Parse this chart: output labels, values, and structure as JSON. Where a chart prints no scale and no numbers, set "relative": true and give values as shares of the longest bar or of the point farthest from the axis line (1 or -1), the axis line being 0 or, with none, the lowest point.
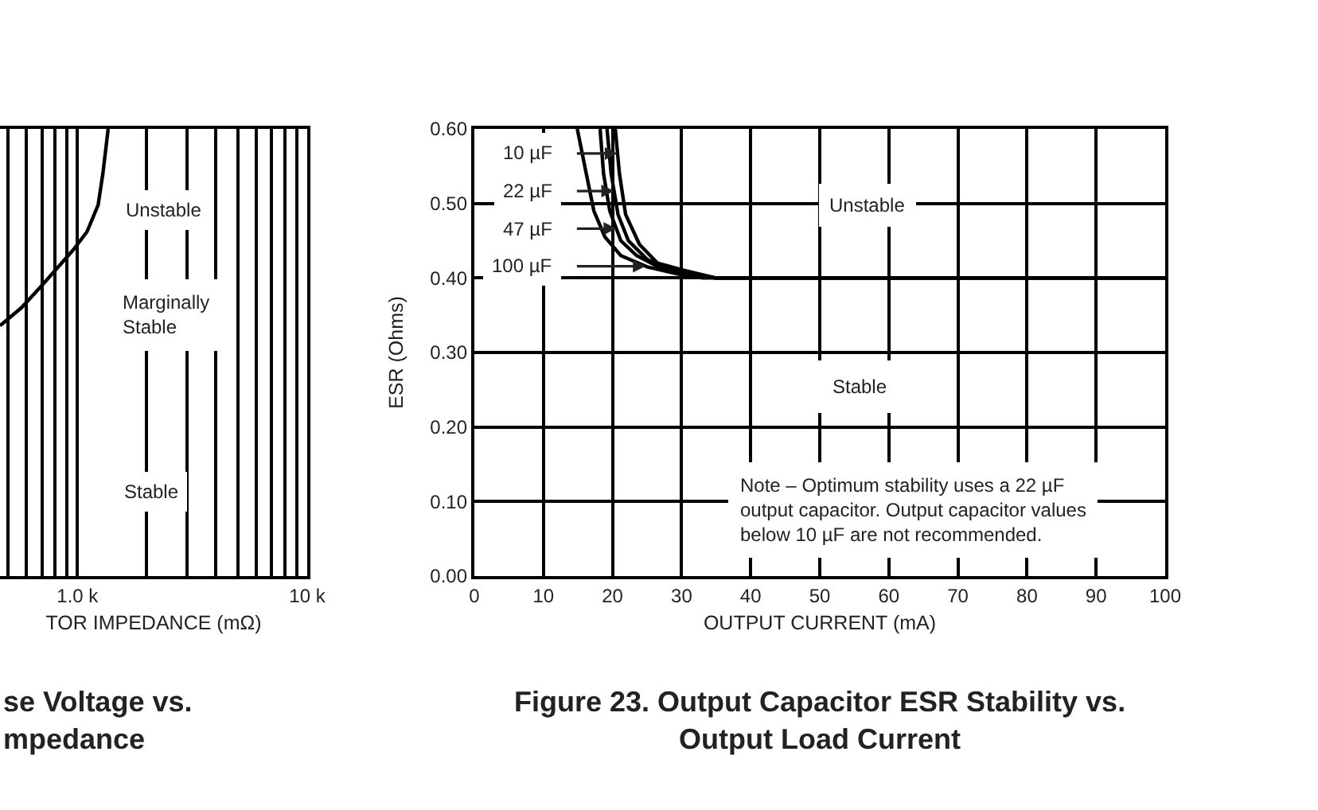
{
  "chart_data": [
    {
      "type": "line",
      "title": "se Voltage vs.\nmpedance",
      "xlabel": "TOR IMPEDANCE (mΩ)",
      "x": [
        460,
        570,
        700,
        820,
        960,
        1100,
        1230,
        1290,
        1360
      ],
      "values": [
        0.56,
        0.6,
        0.65,
        0.69,
        0.73,
        0.77,
        0.83,
        0.9,
        1
      ],
      "color": "#000000",
      "relative": true,
      "log": "x",
      "xlim": [
        460,
        10000
      ],
      "xticks": [
        {
          "value": 500,
          "label": null
        },
        {
          "value": 600,
          "label": null
        },
        {
          "value": 700,
          "label": null
        },
        {
          "value": 800,
          "label": null
        },
        {
          "value": 900,
          "label": null
        },
        {
          "value": 1000,
          "label": "1.0 k"
        },
        {
          "value": 2000,
          "label": null
        },
        {
          "value": 3000,
          "label": null
        },
        {
          "value": 4000,
          "label": null
        },
        {
          "value": 5000,
          "label": null
        },
        {
          "value": 6000,
          "label": null
        },
        {
          "value": 7000,
          "label": null
        },
        {
          "value": 8000,
          "label": null
        },
        {
          "value": 9000,
          "label": null
        },
        {
          "value": 10000,
          "label": "10 k"
        }
      ],
      "grid": "x",
      "tick_labels": "x",
      "annotations": [
        "Unstable",
        "Marginally\nStable",
        "Stable"
      ]
    },
    {
      "type": "line",
      "title": "Figure 23. Output Capacitor ESR Stability vs.\nOutput Load Current",
      "xlabel": "OUTPUT CURRENT (mA)",
      "ylabel": "ESR (Ohms)",
      "xlim": [
        0,
        100
      ],
      "ylim": [
        0,
        0.6
      ],
      "xticks": [
        0,
        10,
        20,
        30,
        40,
        50,
        60,
        70,
        80,
        90,
        100
      ],
      "yticks": [
        {
          "value": 0,
          "label": "0.00"
        },
        {
          "value": 0.1,
          "label": "0.10"
        },
        {
          "value": 0.2,
          "label": "0.20"
        },
        {
          "value": 0.3,
          "label": "0.30"
        },
        {
          "value": 0.4,
          "label": "0.40"
        },
        {
          "value": 0.5,
          "label": "0.50"
        },
        {
          "value": 0.6,
          "label": "0.60"
        }
      ],
      "grid": true,
      "legend": "top left",
      "series": [
        {
          "name": "10 µF",
          "color": "#000000",
          "x": [
            20.4,
            21,
            21.9,
            23.9,
            26.5,
            30.4,
            35,
            100
          ],
          "values": [
            0.6,
            0.54,
            0.485,
            0.445,
            0.42,
            0.41,
            0.4,
            0.4
          ]
        },
        {
          "name": "22 µF",
          "color": "#000000",
          "x": [
            19.2,
            19.8,
            20.8,
            22.3,
            25,
            28.8,
            33,
            100
          ],
          "values": [
            0.6,
            0.54,
            0.485,
            0.45,
            0.425,
            0.41,
            0.4,
            0.4
          ]
        },
        {
          "name": "47 µF",
          "color": "#000000",
          "x": [
            18.2,
            18.7,
            19.6,
            21.2,
            23.5,
            26.6,
            30.4,
            35,
            100
          ],
          "values": [
            0.6,
            0.54,
            0.49,
            0.45,
            0.43,
            0.415,
            0.405,
            0.4,
            0.4
          ]
        },
        {
          "name": "100 µF",
          "color": "#000000",
          "x": [
            14.9,
            16.2,
            17.3,
            18.9,
            21.2,
            25,
            29.6,
            35,
            100
          ],
          "values": [
            0.6,
            0.54,
            0.49,
            0.455,
            0.43,
            0.415,
            0.405,
            0.4,
            0.4
          ]
        }
      ],
      "annotations": [
        "Unstable",
        "Stable",
        "Note – Optimum stability uses a 22 µF\noutput capacitor. Output capacitor values\nbelow 10 µF are not recommended."
      ]
    }
  ]
}
